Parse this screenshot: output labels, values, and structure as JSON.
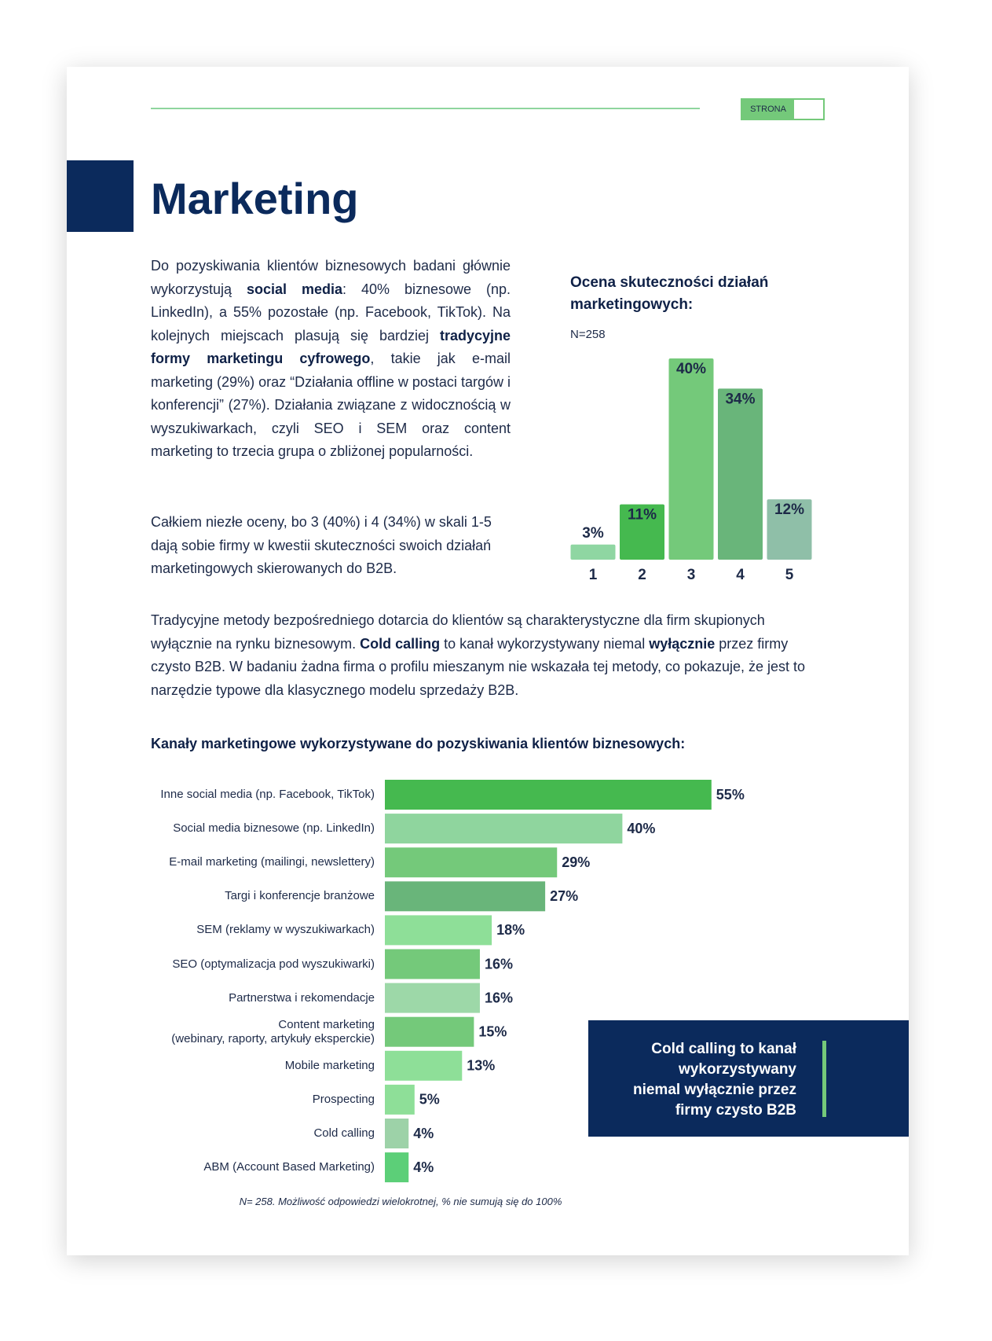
{
  "header": {
    "page_label": "STRONA"
  },
  "title": "Marketing",
  "paragraphs": [
    [
      "Do pozyskiwania klientów biznesowych badani głównie wykorzystują ",
      {
        "bold": "social media"
      },
      ": 40% biznesowe (np. LinkedIn), a 55% pozostałe (np. Facebook, TikTok). Na kolejnych miejscach plasują się bardziej ",
      {
        "bold": "tradycyjne formy marketingu cyfrowego"
      },
      ", takie jak e-mail marketing (29%) oraz “Działania offline w postaci targów i konferencji” (27%). Działania związane z widocznością w wyszukiwarkach, czyli SEO i SEM oraz content marketing to trzecia grupa o zbliżonej popularności."
    ],
    [
      "Całkiem niezłe oceny, bo 3 (40%) i 4 (34%) w skali 1-5 dają sobie firmy w kwestii skuteczności swoich działań marketingowych skierowanych do B2B."
    ],
    [
      "Tradycyjne metody bezpośredniego dotarcia do klientów są charakterystyczne dla firm skupionych wyłącznie na rynku biznesowym. ",
      {
        "bold": "Cold calling"
      },
      " to kanał wykorzystywany niemal ",
      {
        "bold": "wyłącznie"
      },
      " przez firmy czysto B2B. W badaniu żadna firma o profilu mieszanym nie wskazała tej metody, co pokazuje, że jest to narzędzie typowe dla klasycznego modelu sprzedaży B2B."
    ]
  ],
  "callout": {
    "lines": [
      "Cold calling to kanał",
      "wykorzystywany",
      "niemal wyłącznie przez",
      "firmy czysto B2B"
    ]
  },
  "chart_data": [
    {
      "type": "bar",
      "title": "Ocena skuteczności działań marketingowych:",
      "subtitle": "N=258",
      "categories": [
        "1",
        "2",
        "3",
        "4",
        "5"
      ],
      "values": [
        3,
        11,
        40,
        34,
        12
      ],
      "value_labels": [
        "3%",
        "11%",
        "40%",
        "34%",
        "12%"
      ],
      "colors": [
        "#8fd6a2",
        "#45b94f",
        "#74c97a",
        "#69b57a",
        "#8fbfa8"
      ]
    },
    {
      "type": "barh",
      "title": "Kanały marketingowe wykorzystywane do pozyskiwania klientów biznesowych:",
      "categories": [
        "Inne social media (np. Facebook, TikTok)",
        "Social media biznesowe (np. LinkedIn)",
        "E-mail marketing (mailingi, newslettery)",
        "Targi i konferencje branżowe",
        "SEM (reklamy w wyszukiwarkach)",
        "SEO (optymalizacja pod wyszukiwarki)",
        "Partnerstwa i rekomendacje",
        "Content marketing\n(webinary, raporty, artykuły eksperckie)",
        "Mobile marketing",
        "Prospecting",
        "Cold calling",
        "ABM (Account Based Marketing)"
      ],
      "values": [
        55,
        40,
        29,
        27,
        18,
        16,
        16,
        15,
        13,
        5,
        4,
        4
      ],
      "value_labels": [
        "55%",
        "40%",
        "29%",
        "27%",
        "18%",
        "16%",
        "16%",
        "15%",
        "13%",
        "5%",
        "4%",
        "4%"
      ],
      "colors": [
        "#45b94f",
        "#8fd59e",
        "#74c97a",
        "#69b57a",
        "#8edf98",
        "#74c97a",
        "#9dd8a8",
        "#74c97a",
        "#8edf98",
        "#8edf98",
        "#9dd2a8",
        "#5ccf78"
      ],
      "note": "N= 258. Możliwość odpowiedzi wielokrotnej, % nie sumują się do 100%"
    }
  ]
}
